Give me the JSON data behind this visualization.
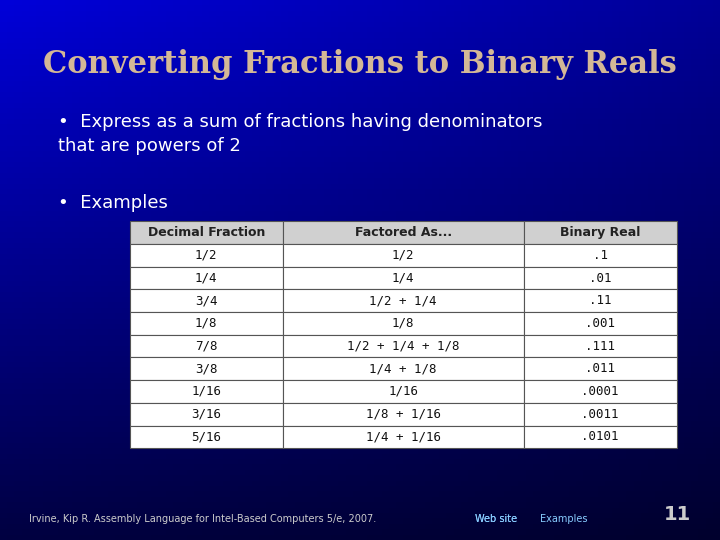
{
  "title": "Converting Fractions to Binary Reals",
  "title_color": "#D4B896",
  "bullet1": "Express as a sum of fractions having denominators\nthat are powers of 2",
  "bullet2": "Examples",
  "bullet_color": "#FFFFFF",
  "bg_color_top": "#0000CC",
  "bg_color_bottom": "#000033",
  "table_headers": [
    "Decimal Fraction",
    "Factored As...",
    "Binary Real"
  ],
  "table_rows": [
    [
      "1/2",
      "1/2",
      ".1"
    ],
    [
      "1/4",
      "1/4",
      ".01"
    ],
    [
      "3/4",
      "1/2 + 1/4",
      ".11"
    ],
    [
      "1/8",
      "1/8",
      ".001"
    ],
    [
      "7/8",
      "1/2 + 1/4 + 1/8",
      ".111"
    ],
    [
      "3/8",
      "1/4 + 1/8",
      ".011"
    ],
    [
      "1/16",
      "1/16",
      ".0001"
    ],
    [
      "3/16",
      "1/8 + 1/16",
      ".0011"
    ],
    [
      "5/16",
      "1/4 + 1/16",
      ".0101"
    ]
  ],
  "footer_left": "Irvine, Kip R. Assembly Language for Intel-Based Computers 5/e, 2007.",
  "footer_web": "Web site",
  "footer_examples": "Examples",
  "footer_page": "11",
  "footer_color": "#CCCCCC",
  "footer_link_color": "#88CCFF",
  "table_header_bg": "#D0D0D0",
  "table_row_bg": "#FFFFFF",
  "table_border_color": "#555555"
}
